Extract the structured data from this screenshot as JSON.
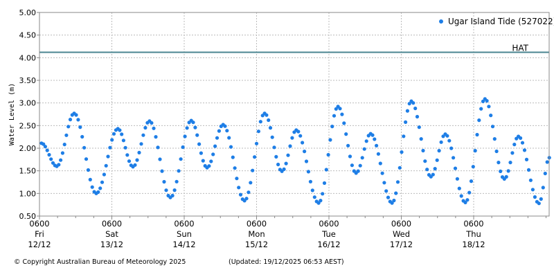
{
  "chart_data": {
    "type": "scatter",
    "title": "",
    "ylabel": "Water Level (m)",
    "xlabel": "",
    "ylim": [
      0.5,
      5.0
    ],
    "yticks": [
      "0.50",
      "1.00",
      "1.50",
      "2.00",
      "2.50",
      "3.00",
      "3.50",
      "4.00",
      "4.50",
      "5.00"
    ],
    "xticks": [
      {
        "time": "0600",
        "day": "Fri",
        "date": "12/12"
      },
      {
        "time": "0600",
        "day": "Sat",
        "date": "13/12"
      },
      {
        "time": "0600",
        "day": "Sun",
        "date": "14/12"
      },
      {
        "time": "0600",
        "day": "Mon",
        "date": "15/12"
      },
      {
        "time": "0600",
        "day": "Tue",
        "date": "16/12"
      },
      {
        "time": "0600",
        "day": "Wed",
        "date": "17/12"
      },
      {
        "time": "0600",
        "day": "Thu",
        "date": "18/12"
      }
    ],
    "xrange": [
      "2025-12-12 06:00",
      "2025-12-19 07:30"
    ],
    "grid": true,
    "legend_position": "top-right",
    "series": [
      {
        "name": "Ugar Island Tide (527022)",
        "color": "#1e7ee6",
        "turning_points": [
          [
            "2025-12-12 06:40",
            2.11
          ],
          [
            "2025-12-12 11:45",
            1.6
          ],
          [
            "2025-12-12 17:30",
            2.77
          ],
          [
            "2025-12-13 00:50",
            1.0
          ],
          [
            "2025-12-13 08:00",
            2.43
          ],
          [
            "2025-12-13 13:00",
            1.59
          ],
          [
            "2025-12-13 18:30",
            2.6
          ],
          [
            "2025-12-14 01:25",
            0.91
          ],
          [
            "2025-12-14 08:20",
            2.61
          ],
          [
            "2025-12-14 13:35",
            1.57
          ],
          [
            "2025-12-14 18:55",
            2.52
          ],
          [
            "2025-12-15 02:00",
            0.84
          ],
          [
            "2025-12-15 08:40",
            2.77
          ],
          [
            "2025-12-15 14:25",
            1.49
          ],
          [
            "2025-12-15 19:10",
            2.4
          ],
          [
            "2025-12-16 02:35",
            0.79
          ],
          [
            "2025-12-16 09:00",
            2.92
          ],
          [
            "2025-12-16 15:00",
            1.45
          ],
          [
            "2025-12-16 19:50",
            2.32
          ],
          [
            "2025-12-17 02:55",
            0.79
          ],
          [
            "2025-12-17 09:20",
            3.04
          ],
          [
            "2025-12-17 15:50",
            1.37
          ],
          [
            "2025-12-17 20:35",
            2.31
          ],
          [
            "2025-12-18 03:15",
            0.8
          ],
          [
            "2025-12-18 09:45",
            3.09
          ],
          [
            "2025-12-18 16:10",
            1.32
          ],
          [
            "2025-12-18 20:50",
            2.26
          ],
          [
            "2025-12-19 03:40",
            0.78
          ],
          [
            "2025-12-19 07:05",
            1.79
          ]
        ]
      }
    ],
    "reference_lines": [
      {
        "label": "HAT",
        "value": 4.12,
        "color": "#4a8590"
      }
    ]
  },
  "footer": {
    "copyright": "© Copyright Australian Bureau of Meteorology 2025",
    "updated": "(Updated: 19/12/2025 06:53 AEST)"
  }
}
